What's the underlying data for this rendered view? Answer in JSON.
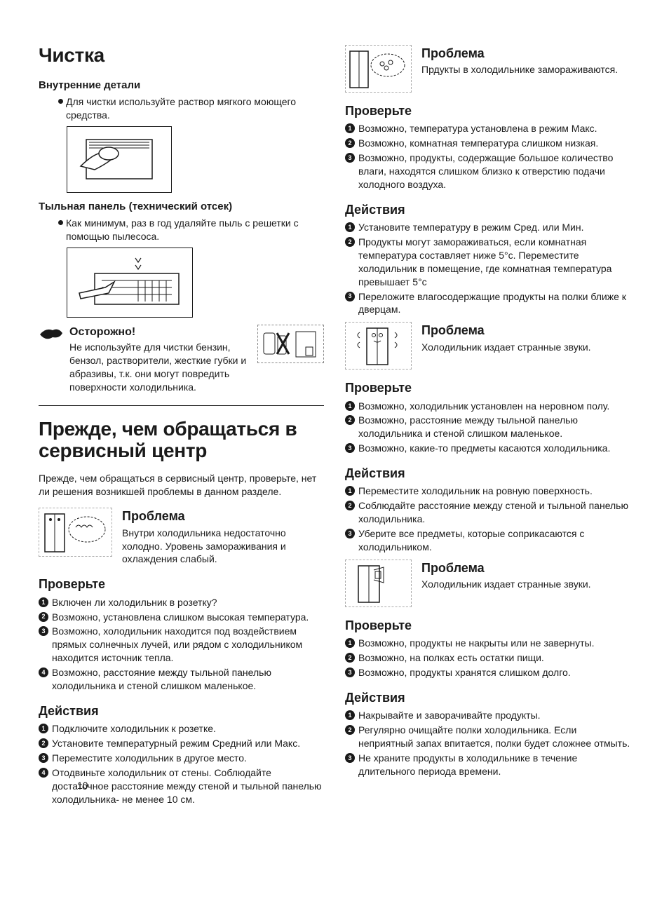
{
  "page_number": "10",
  "colors": {
    "text": "#1a1a1a",
    "bg": "#ffffff"
  },
  "typography": {
    "body_pt": 14,
    "h1_pt": 28,
    "h2_pt": 15,
    "h3_pt": 18
  },
  "left": {
    "h1_cleaning": "Чистка",
    "internal_parts": {
      "heading": "Внутренние детали",
      "bullet": "Для чистки используйте раствор мягкого моющего средства."
    },
    "rear_panel": {
      "heading": "Тыльная панель (технический отсек)",
      "bullet": "Как минимум, раз в год удаляйте пыль с решетки с помощью пылесоса."
    },
    "caution": {
      "title": "Осторожно!",
      "text": "Не используйте для чистки бензин, бензол, растворители, жесткие губки и абразивы, т.к. они могут повредить поверхности холодильника."
    },
    "h1_service": "Прежде, чем обращаться в сервисный центр",
    "service_intro": "Прежде, чем обращаться в сервисный центр, проверьте, нет ли решения возникшей проблемы в данном разделе.",
    "problem1": {
      "heading": "Проблема",
      "text": "Внутри холодильника недостаточно холодно. Уровень замораживания и охлаждения слабый.",
      "check_heading": "Проверьте",
      "checks": [
        "Включен ли холодильник в розетку?",
        "Возможно, установлена слишком высокая температура.",
        "Возможно, холодильник находится под воздействием прямых солнечных лучей, или рядом с холодильником находится источник тепла.",
        "Возможно, расстояние между тыльной панелью холодильника и стеной слишком маленькое."
      ],
      "actions_heading": "Действия",
      "actions": [
        "Подключите холодильник к розетке.",
        "Установите температурный режим Средний или Макс.",
        "Переместите холодильник в другое место.",
        "Отодвиньте холодильник от стены. Соблюдайте достаточное расстояние между стеной и тыльной панелью холодильника- не менее 10 см."
      ]
    }
  },
  "right": {
    "problem2": {
      "heading": "Проблема",
      "text": "Прдукты в холодильнике замораживаются.",
      "check_heading": "Проверьте",
      "checks": [
        "Возможно, температура установлена в режим Макс.",
        "Возможно, комнатная температура слишком низкая.",
        "Возможно, продукты, содержащие большое количество влаги, находятся слишком близко к отверстию подачи холодного воздуха."
      ],
      "actions_heading": "Действия",
      "actions": [
        "Установите температуру в режим Сред. или Мин.",
        "Продукты могут замораживаться, если комнатная температура составляет ниже 5°с. Переместите холодильник в помещение, где комнатная температура превышает 5°с",
        "Переложите влагосодержащие продукты на полки ближе к дверцам."
      ]
    },
    "problem3": {
      "heading": "Проблема",
      "text": "Холодильник издает странные звуки.",
      "check_heading": "Проверьте",
      "checks": [
        "Возможно, холодильник установлен на неровном полу.",
        "Возможно, расстояние между тыльной панелью холодильника и стеной слишком маленькое.",
        "Возможно, какие-то предметы касаются холодильника."
      ],
      "actions_heading": "Действия",
      "actions": [
        "Переместите холодильник на ровную поверхность.",
        "Соблюдайте расстояние между стеной и тыльной панелью холодильника.",
        "Уберите все предметы, которые соприкасаются с холодильником."
      ]
    },
    "problem4": {
      "heading": "Проблема",
      "text": "Холодильник издает странные звуки.",
      "check_heading": "Проверьте",
      "checks": [
        "Возможно, продукты не накрыты или не завернуты.",
        "Возможно, на полках есть остатки пищи.",
        "Возможно, продукты хранятся слишком долго."
      ],
      "actions_heading": "Действия",
      "actions": [
        "Накрывайте и заворачивайте продукты.",
        "Регулярно очищайте полки холодильника. Если неприятный запах впитается, полки будет сложнее отмыть.",
        "Не храните продукты в холодильнике в течение длительного периода времени."
      ]
    }
  }
}
